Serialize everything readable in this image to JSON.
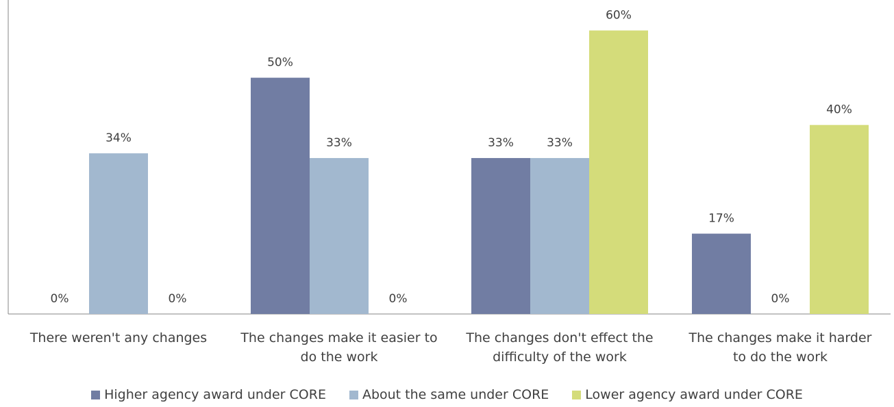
{
  "chart_data": {
    "type": "bar",
    "categories": [
      [
        "There weren't any changes"
      ],
      [
        "The changes make it easier to",
        "do the work"
      ],
      [
        "The changes don't effect the",
        "difficulty of the work"
      ],
      [
        "The changes make it harder",
        "to do the work"
      ]
    ],
    "series": [
      {
        "name": "Higher agency award under CORE",
        "color": "#717DA3",
        "values": [
          0,
          50,
          33,
          17
        ],
        "labels": [
          "0%",
          "50%",
          "33%",
          "17%"
        ]
      },
      {
        "name": "About the same under CORE",
        "color": "#A2B8CF",
        "values": [
          34,
          33,
          33,
          0
        ],
        "labels": [
          "34%",
          "33%",
          "33%",
          "0%"
        ]
      },
      {
        "name": "Lower agency award under CORE",
        "color": "#D4DC7A",
        "values": [
          0,
          0,
          60,
          40
        ],
        "labels": [
          "0%",
          "0%",
          "60%",
          "40%"
        ]
      }
    ],
    "ylim": [
      0,
      65
    ],
    "grid": false,
    "legend_position": "bottom"
  }
}
